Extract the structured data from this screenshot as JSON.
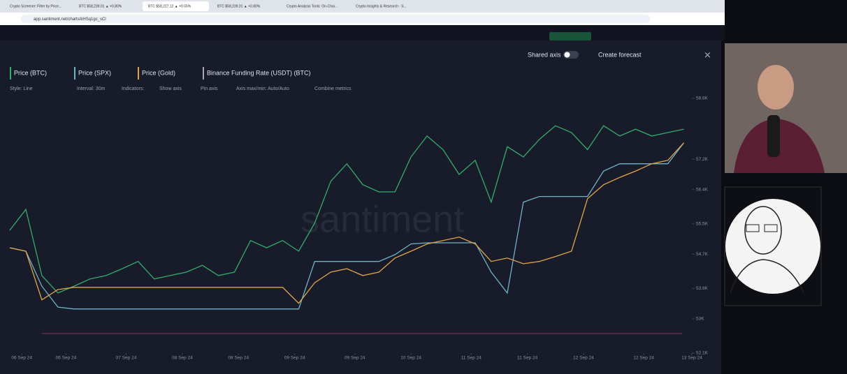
{
  "browser": {
    "tabs": [
      "Crypto Screener: Filter by Price...",
      "BTC $58,239.01 ▲ +0.80%",
      "BTC $58,227.12 ▲ +0.55%",
      "BTC $58,239.01 ▲ +0.80%",
      "Crypto Analysis Tools: On-Chai...",
      "Crypto Insights & Research · S..."
    ],
    "url": "app.santiment.net/charts/kHSq1gc_sCl"
  },
  "toolbar": {
    "shared_axis": "Shared axis",
    "create_forecast": "Create forecast"
  },
  "metrics": [
    "Price (BTC)",
    "Price (SPX)",
    "Price (Gold)",
    "Binance Funding Rate (USDT) (BTC)"
  ],
  "settings": [
    "Style: Line",
    "Interval: 30m",
    "Indicators:",
    "Show axis",
    "Pin axis",
    "Axis max/min: Auto/Auto",
    "Combine metrics"
  ],
  "watermark": "santiment",
  "chart_data": {
    "type": "line",
    "x": [
      0,
      4,
      8,
      12,
      16,
      20,
      24,
      28,
      32,
      36,
      40,
      44,
      48,
      52,
      56,
      60,
      64,
      68,
      72,
      76,
      80,
      84,
      88,
      92,
      96,
      100,
      104,
      108,
      112,
      116,
      120,
      124,
      128,
      132,
      136,
      140,
      144,
      148,
      152,
      156,
      160,
      164,
      168
    ],
    "xlim": [
      0,
      170
    ],
    "xticks": [
      {
        "value": 3,
        "label": "06 Sep 24"
      },
      {
        "value": 14,
        "label": "06 Sep 24"
      },
      {
        "value": 29,
        "label": "07 Sep 24"
      },
      {
        "value": 43,
        "label": "08 Sep 24"
      },
      {
        "value": 57,
        "label": "08 Sep 24"
      },
      {
        "value": 71,
        "label": "09 Sep 24"
      },
      {
        "value": 86,
        "label": "09 Sep 24"
      },
      {
        "value": 100,
        "label": "10 Sep 24"
      },
      {
        "value": 115,
        "label": "11 Sep 24"
      },
      {
        "value": 129,
        "label": "11 Sep 24"
      },
      {
        "value": 143,
        "label": "12 Sep 24"
      },
      {
        "value": 158,
        "label": "12 Sep 24"
      },
      {
        "value": 170,
        "label": "13 Sep 24"
      }
    ],
    "ylim": [
      52100,
      58800
    ],
    "yticks": [
      {
        "value": 52100,
        "label": "52.1K"
      },
      {
        "value": 53000,
        "label": "53K"
      },
      {
        "value": 53800,
        "label": "53.8K"
      },
      {
        "value": 54700,
        "label": "54.7K"
      },
      {
        "value": 55500,
        "label": "55.5K"
      },
      {
        "value": 56400,
        "label": "56.4K"
      },
      {
        "value": 57200,
        "label": "57.2K"
      },
      {
        "value": 58800,
        "label": "58.8K"
      }
    ],
    "series": [
      {
        "name": "Price (BTC)",
        "color": "#2fae6a",
        "values": [
          55330,
          55880,
          54140,
          53680,
          53860,
          54050,
          54140,
          54320,
          54510,
          54050,
          54140,
          54230,
          54410,
          54140,
          54230,
          55060,
          54870,
          55060,
          54780,
          55520,
          56620,
          57080,
          56530,
          56340,
          56340,
          57260,
          57810,
          57450,
          56800,
          57170,
          56070,
          57530,
          57260,
          57720,
          58080,
          57900,
          57450,
          58080,
          57810,
          57990,
          57810,
          57900,
          57990
        ]
      },
      {
        "name": "Price (SPX)",
        "color": "#6fb3c8",
        "values": [
          54870,
          54780,
          53860,
          53310,
          53260,
          53260,
          53260,
          53260,
          53260,
          53260,
          53260,
          53260,
          53260,
          53260,
          53260,
          53260,
          53260,
          53260,
          53260,
          54510,
          54510,
          54510,
          54510,
          54510,
          54690,
          54970,
          55000,
          55000,
          55000,
          55000,
          54230,
          53680,
          56070,
          56220,
          56220,
          56220,
          56220,
          56890,
          57080,
          57080,
          57080,
          57080,
          57630
        ]
      },
      {
        "name": "Price (Gold)",
        "color": "#e0a547",
        "values": [
          54870,
          54780,
          53500,
          53770,
          53830,
          53830,
          53830,
          53830,
          53830,
          53830,
          53830,
          53830,
          53830,
          53830,
          53830,
          53830,
          53830,
          53830,
          53410,
          53950,
          54230,
          54320,
          54140,
          54230,
          54600,
          54780,
          54970,
          55060,
          55150,
          54970,
          54510,
          54600,
          54450,
          54510,
          54640,
          54780,
          56160,
          56530,
          56720,
          56890,
          57080,
          57170,
          57630
        ]
      }
    ]
  }
}
